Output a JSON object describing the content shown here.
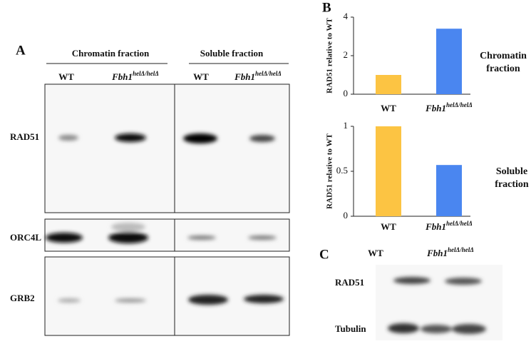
{
  "panel_a": {
    "letter": "A",
    "headers": [
      "Chromatin fraction",
      "Soluble fraction"
    ],
    "lanes": [
      {
        "text": "WT"
      },
      {
        "text": "Fbh1",
        "sup": "helΔ/helΔ"
      },
      {
        "text": "WT"
      },
      {
        "text": "Fbh1",
        "sup": "helΔ/helΔ"
      }
    ],
    "rows": [
      "RAD51",
      "ORC4L",
      "GRB2"
    ]
  },
  "panel_b": {
    "letter": "B"
  },
  "chart_data": [
    {
      "type": "bar",
      "ylabel": "RAD51 relative to WT",
      "annotation": "Chromatin fraction",
      "categories": [
        "WT",
        "Fbh1"
      ],
      "category_superscripts": [
        null,
        "helΔ/helΔ"
      ],
      "values": [
        1,
        3.4
      ],
      "colors": [
        "#fcc443",
        "#4a86f0"
      ],
      "ylim": [
        0,
        4
      ],
      "yticks": [
        0,
        2,
        4
      ]
    },
    {
      "type": "bar",
      "ylabel": "RAD51 relative to WT",
      "annotation": "Soluble fraction",
      "categories": [
        "WT",
        "Fbh1"
      ],
      "category_superscripts": [
        null,
        "helΔ/helΔ"
      ],
      "values": [
        1,
        0.57
      ],
      "colors": [
        "#fcc443",
        "#4a86f0"
      ],
      "ylim": [
        0,
        1
      ],
      "yticks": [
        0,
        0.5,
        1
      ]
    }
  ],
  "panel_c": {
    "letter": "C",
    "lanes": [
      {
        "text": "WT"
      },
      {
        "text": "Fbh1",
        "sup": "helΔ/helΔ"
      }
    ],
    "rows": [
      "RAD51",
      "Tubulin"
    ]
  }
}
